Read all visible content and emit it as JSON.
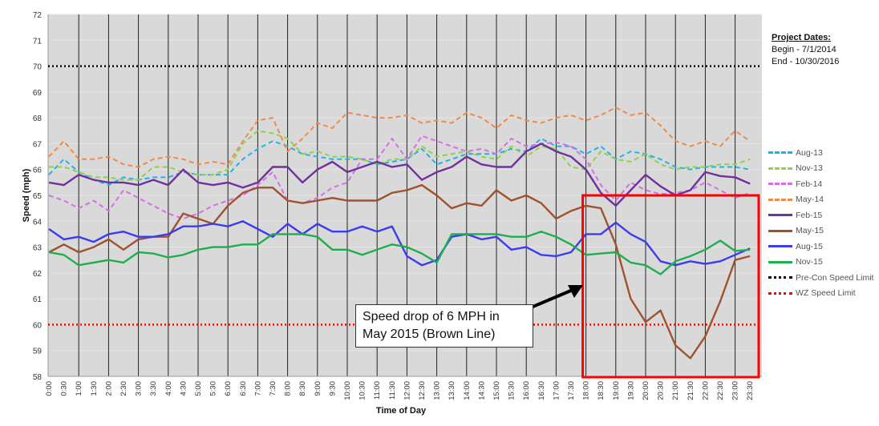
{
  "chart_data": {
    "type": "line",
    "title": "",
    "xlabel": "Time of Day",
    "ylabel": "Speed (mph)",
    "ylim": [
      58,
      72
    ],
    "yticks": [
      58,
      59,
      60,
      61,
      62,
      63,
      64,
      65,
      66,
      67,
      68,
      69,
      70,
      71,
      72
    ],
    "grid": true,
    "legend_position": "right",
    "x": [
      "0:00",
      "0:30",
      "1:00",
      "1:30",
      "2:00",
      "2:30",
      "3:00",
      "3:30",
      "4:00",
      "4:30",
      "5:00",
      "5:30",
      "6:00",
      "6:30",
      "7:00",
      "7:30",
      "8:00",
      "8:30",
      "9:00",
      "9:30",
      "10:00",
      "10:30",
      "11:00",
      "11:30",
      "12:00",
      "12:30",
      "13:00",
      "13:30",
      "14:00",
      "14:30",
      "15:00",
      "15:30",
      "16:00",
      "16:30",
      "17:00",
      "17:30",
      "18:00",
      "18:30",
      "19:00",
      "19:30",
      "20:00",
      "20:30",
      "21:00",
      "21:30",
      "22:00",
      "22:30",
      "23:00",
      "23:30"
    ],
    "series": [
      {
        "name": "Aug-13",
        "color": "#1fb4e8",
        "style": "dashed",
        "values": [
          65.8,
          66.4,
          65.9,
          65.6,
          65.4,
          65.7,
          65.6,
          65.7,
          65.7,
          65.9,
          65.8,
          65.8,
          65.8,
          66.4,
          66.8,
          67.1,
          66.9,
          66.6,
          66.5,
          66.4,
          66.4,
          66.4,
          66.2,
          66.3,
          66.4,
          66.8,
          66.2,
          66.4,
          66.6,
          66.6,
          66.6,
          66.8,
          66.7,
          67.2,
          66.9,
          66.9,
          66.6,
          66.9,
          66.4,
          66.7,
          66.6,
          66.4,
          66.1,
          66.0,
          66.1,
          66.1,
          66.1,
          66.0
        ]
      },
      {
        "name": "Nov-13",
        "color": "#8fd14f",
        "style": "dashed",
        "values": [
          66.1,
          66.1,
          65.9,
          65.7,
          65.7,
          65.6,
          65.6,
          66.1,
          66.1,
          65.9,
          65.8,
          65.8,
          66.0,
          67.0,
          67.5,
          67.4,
          67.2,
          66.6,
          66.7,
          66.5,
          66.5,
          66.4,
          66.2,
          66.4,
          66.4,
          66.9,
          66.5,
          66.6,
          66.7,
          66.5,
          66.4,
          66.9,
          66.5,
          66.9,
          66.8,
          66.1,
          66.0,
          66.7,
          66.4,
          66.3,
          66.6,
          66.2,
          66.0,
          66.1,
          66.1,
          66.2,
          66.2,
          66.4
        ]
      },
      {
        "name": "Feb-14",
        "color": "#d56ee8",
        "style": "dashed",
        "values": [
          65.0,
          64.8,
          64.5,
          64.8,
          64.4,
          65.2,
          64.9,
          64.6,
          64.3,
          64.1,
          64.3,
          64.6,
          64.8,
          65.0,
          65.4,
          65.9,
          64.8,
          64.7,
          64.9,
          65.3,
          65.5,
          66.4,
          66.4,
          67.2,
          66.4,
          67.3,
          67.1,
          66.9,
          66.7,
          66.8,
          66.6,
          67.2,
          66.9,
          67.0,
          67.05,
          66.9,
          66.4,
          65.4,
          64.8,
          65.5,
          65.2,
          65.05,
          65.1,
          65.2,
          65.5,
          65.2,
          64.9,
          65.1
        ]
      },
      {
        "name": "May-14",
        "color": "#f08a4b",
        "style": "dashed",
        "values": [
          66.5,
          67.1,
          66.4,
          66.4,
          66.5,
          66.2,
          66.1,
          66.4,
          66.5,
          66.4,
          66.2,
          66.3,
          66.2,
          67.1,
          67.9,
          68.0,
          66.7,
          67.2,
          67.8,
          67.6,
          68.2,
          68.1,
          68.0,
          68.0,
          68.1,
          67.8,
          67.9,
          67.8,
          68.2,
          68.0,
          67.6,
          68.1,
          67.9,
          67.8,
          68.0,
          68.1,
          67.9,
          68.1,
          68.4,
          68.1,
          68.2,
          67.7,
          67.1,
          66.9,
          67.1,
          66.9,
          67.5,
          67.1
        ]
      },
      {
        "name": "Feb-15",
        "color": "#7030a0",
        "style": "solid",
        "values": [
          65.5,
          65.4,
          65.8,
          65.6,
          65.5,
          65.5,
          65.4,
          65.6,
          65.4,
          66.0,
          65.5,
          65.4,
          65.5,
          65.3,
          65.5,
          66.1,
          66.1,
          65.5,
          66.0,
          66.3,
          65.9,
          66.1,
          66.3,
          66.1,
          66.2,
          65.6,
          65.9,
          66.1,
          66.5,
          66.2,
          66.1,
          66.1,
          66.7,
          67.0,
          66.7,
          66.5,
          66.0,
          65.1,
          64.6,
          65.2,
          65.8,
          65.35,
          65.0,
          65.2,
          65.9,
          65.75,
          65.7,
          65.45
        ]
      },
      {
        "name": "May-15",
        "color": "#a0522d",
        "style": "solid",
        "values": [
          62.8,
          63.1,
          62.8,
          63.0,
          63.3,
          62.9,
          63.3,
          63.4,
          63.4,
          64.3,
          64.1,
          63.9,
          64.6,
          65.1,
          65.3,
          65.3,
          64.8,
          64.7,
          64.8,
          64.9,
          64.8,
          64.8,
          64.8,
          65.1,
          65.2,
          65.4,
          65.0,
          64.5,
          64.7,
          64.6,
          65.2,
          64.8,
          65.0,
          64.7,
          64.1,
          64.4,
          64.6,
          64.5,
          63.1,
          61.0,
          60.1,
          60.55,
          59.2,
          58.7,
          59.55,
          60.9,
          62.5,
          62.65
        ]
      },
      {
        "name": "Aug-15",
        "color": "#3b3bf0",
        "style": "solid",
        "values": [
          63.7,
          63.3,
          63.4,
          63.2,
          63.5,
          63.6,
          63.4,
          63.4,
          63.5,
          63.8,
          63.8,
          63.9,
          63.8,
          64.0,
          63.7,
          63.4,
          63.9,
          63.5,
          63.9,
          63.6,
          63.6,
          63.8,
          63.6,
          63.8,
          62.65,
          62.3,
          62.5,
          63.4,
          63.5,
          63.3,
          63.4,
          62.9,
          63.0,
          62.7,
          62.65,
          62.8,
          63.5,
          63.5,
          63.95,
          63.5,
          63.2,
          62.45,
          62.3,
          62.45,
          62.35,
          62.45,
          62.7,
          62.95
        ]
      },
      {
        "name": "Nov-15",
        "color": "#1fae4f",
        "style": "solid",
        "values": [
          62.8,
          62.7,
          62.3,
          62.4,
          62.5,
          62.4,
          62.8,
          62.75,
          62.6,
          62.7,
          62.9,
          63.0,
          63.0,
          63.1,
          63.1,
          63.5,
          63.5,
          63.5,
          63.4,
          62.9,
          62.9,
          62.7,
          62.9,
          63.1,
          63.0,
          62.75,
          62.4,
          63.5,
          63.5,
          63.5,
          63.5,
          63.4,
          63.4,
          63.6,
          63.4,
          63.1,
          62.7,
          62.75,
          62.8,
          62.4,
          62.3,
          61.95,
          62.45,
          62.65,
          62.9,
          63.25,
          62.85,
          62.9
        ]
      }
    ],
    "reference_lines": [
      {
        "name": "Pre-Con Speed Limit",
        "value": 70,
        "color": "#000000",
        "style": "dotted"
      },
      {
        "name": "WZ Speed Limit",
        "value": 60,
        "color": "#ff0000",
        "style": "dotted"
      }
    ],
    "annotation": {
      "text": "Speed drop of 6 MPH in May 2015 (Brown Line)",
      "highlight_time_range": [
        "18:00",
        "23:59"
      ],
      "highlight_speed_range": [
        58,
        65
      ],
      "highlight_color": "#ff0000"
    }
  },
  "project_dates": {
    "title": "Project Dates:",
    "begin": "Begin - 7/1/2014",
    "end": "End - 10/30/2016"
  }
}
